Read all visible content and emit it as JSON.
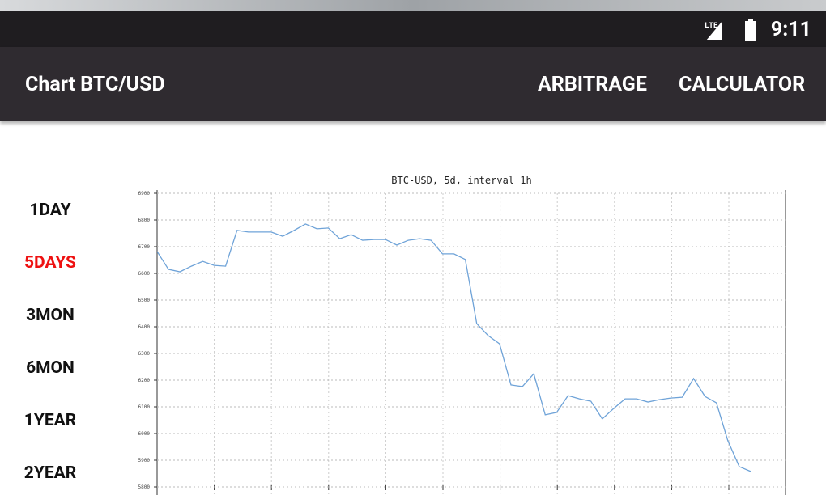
{
  "status_bar": {
    "time": "9:11"
  },
  "app_bar": {
    "title": "Chart BTC/USD",
    "actions": [
      "ARBITRAGE",
      "CALCULATOR"
    ]
  },
  "menu": {
    "items": [
      "1DAY",
      "5DAYS",
      "3MON",
      "6MON",
      "1YEAR",
      "2YEAR"
    ],
    "selected": 1
  },
  "chart_data": {
    "type": "line",
    "title": "BTC-USD, 5d, interval 1h",
    "series": [
      {
        "name": "BTC-USD",
        "color": "#6fa3d8",
        "values": [
          6682,
          6615,
          6606,
          6627,
          6645,
          6630,
          6627,
          6761,
          6755,
          6755,
          6755,
          6739,
          6761,
          6785,
          6767,
          6770,
          6730,
          6745,
          6724,
          6727,
          6727,
          6706,
          6724,
          6730,
          6724,
          6673,
          6673,
          6652,
          6412,
          6367,
          6336,
          6182,
          6176,
          6224,
          6070,
          6079,
          6142,
          6130,
          6121,
          6055,
          6094,
          6130,
          6130,
          6118,
          6127,
          6133,
          6136,
          6206,
          6139,
          6115,
          5973,
          5876,
          5858
        ]
      }
    ],
    "ylim": [
      5800,
      6900
    ],
    "yticks": [
      5800,
      5900,
      6000,
      6100,
      6200,
      6300,
      6400,
      6500,
      6600,
      6700,
      6800,
      6900
    ],
    "grid": true
  }
}
